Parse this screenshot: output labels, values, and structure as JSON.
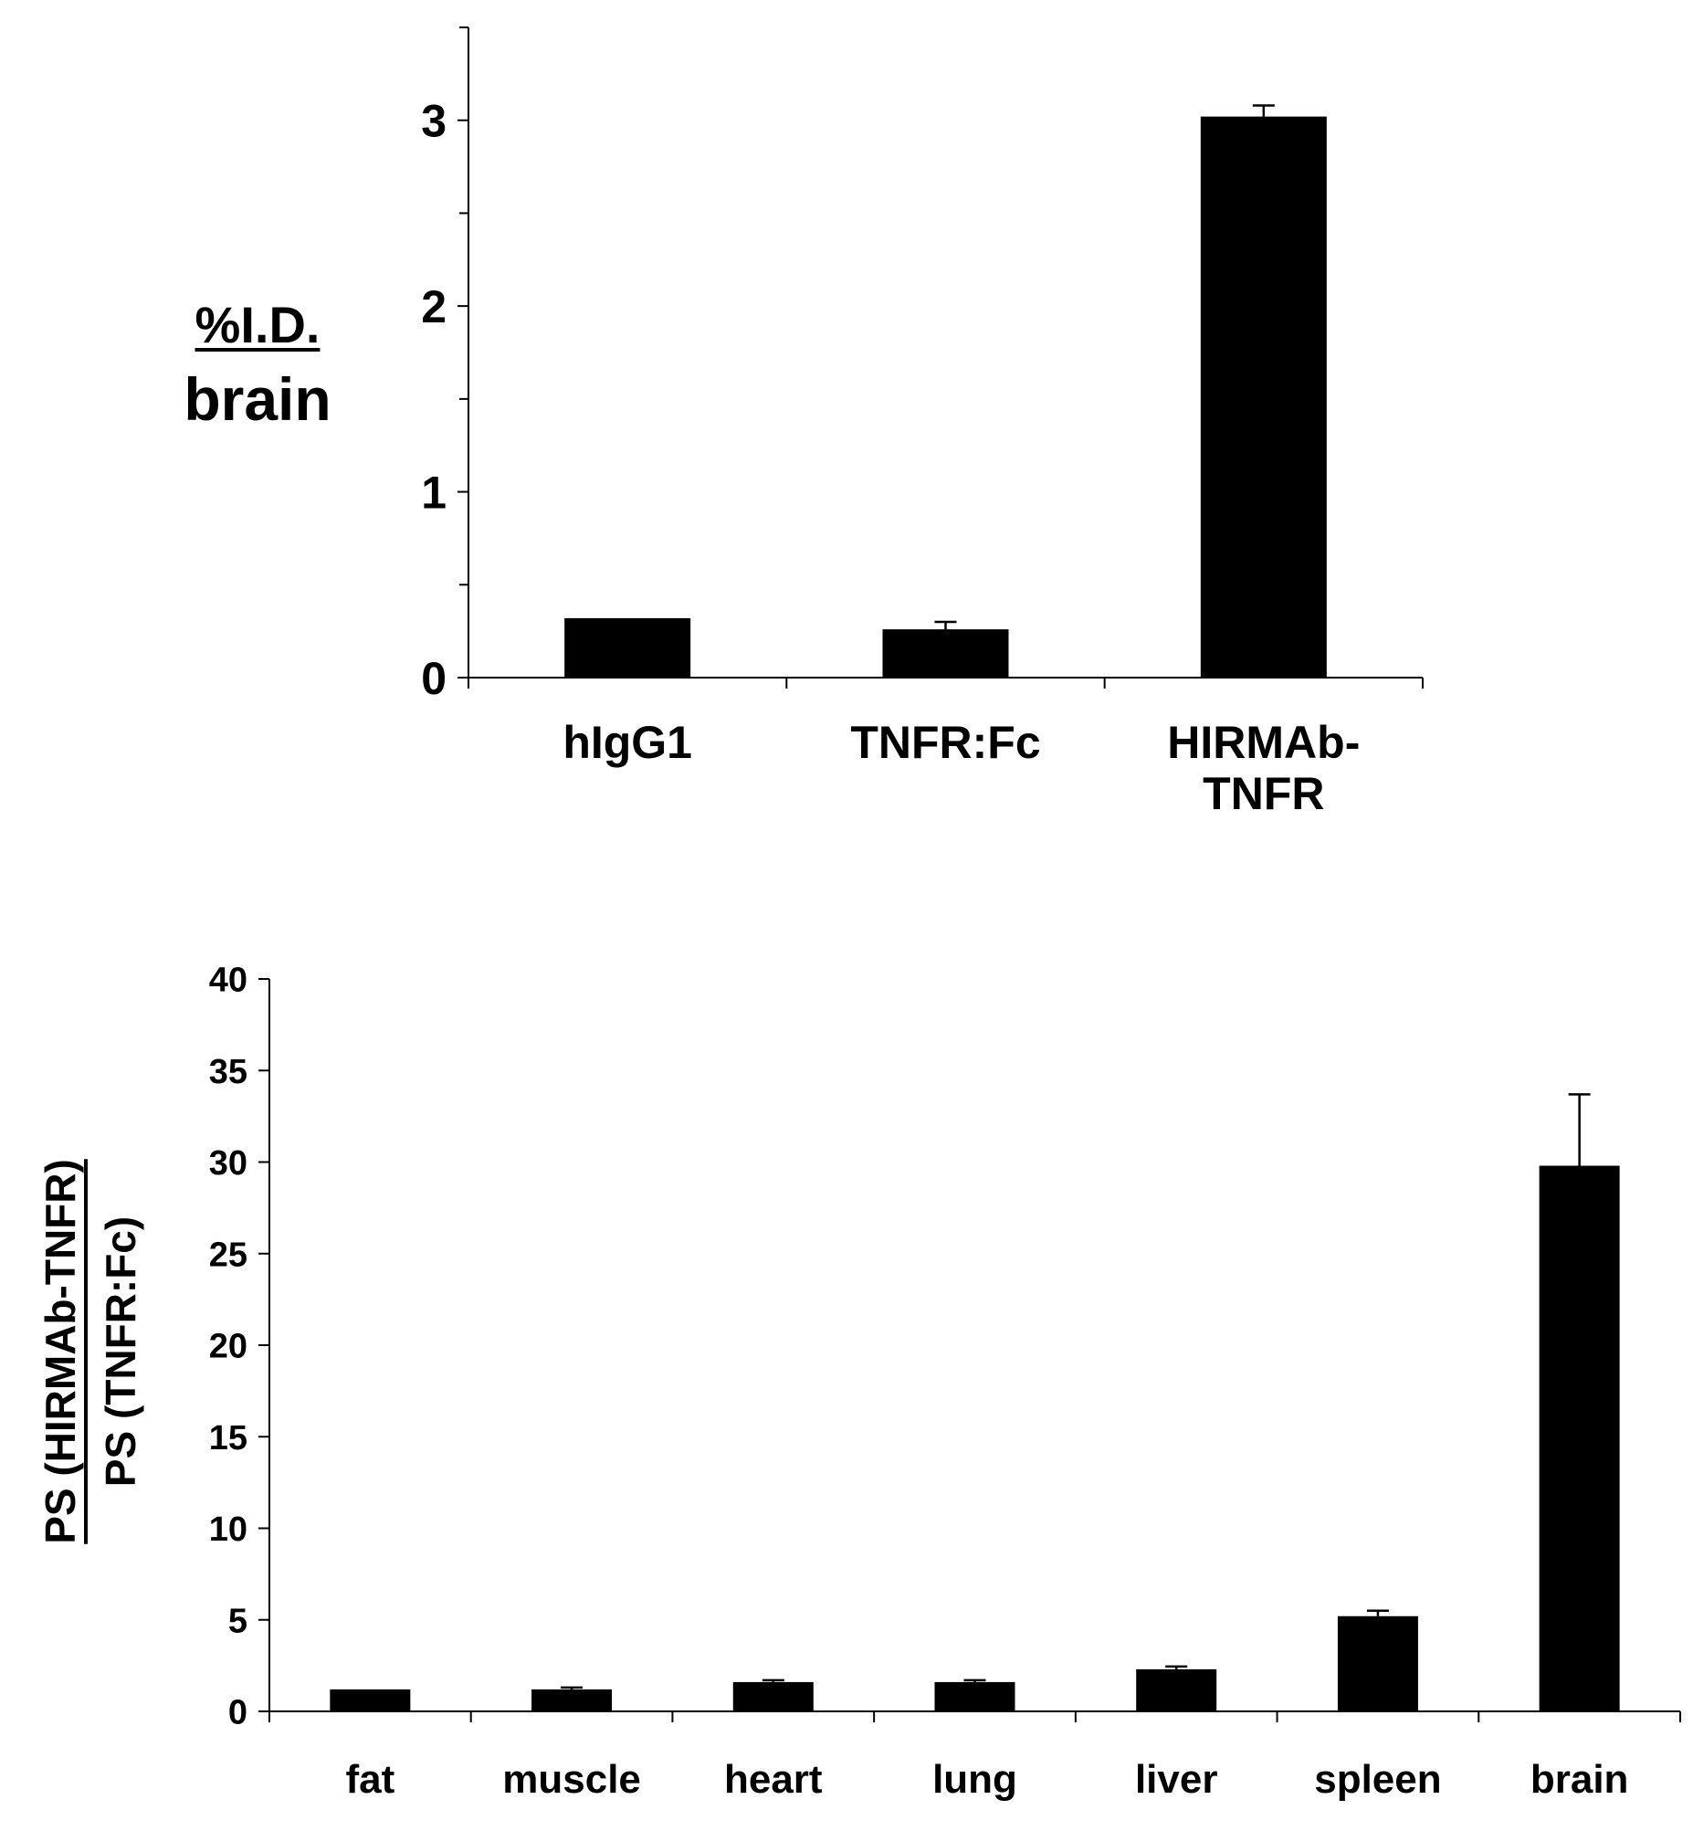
{
  "colors": {
    "bar": "#000000",
    "axis": "#000000",
    "background": "#ffffff"
  },
  "chart_data": [
    {
      "type": "bar",
      "title": "",
      "ylabel_numerator": "%I.D.",
      "ylabel_denominator": "brain",
      "xlabel": "",
      "ylim": [
        0,
        3.5
      ],
      "yticks": [
        0,
        1,
        2,
        3
      ],
      "ytick_labels": [
        "0",
        "1",
        "2",
        "3"
      ],
      "minor_ytick_step": 0.5,
      "categories": [
        [
          "hIgG1"
        ],
        [
          "TNFR:Fc"
        ],
        [
          "HIRMAb-",
          "TNFR"
        ]
      ],
      "values": [
        0.32,
        0.26,
        3.02
      ],
      "errors": [
        0,
        0.04,
        0.06
      ],
      "grid": false,
      "legend": "none"
    },
    {
      "type": "bar",
      "title": "",
      "ylabel_numerator": "PS (HIRMAb-TNFR)",
      "ylabel_denominator": "PS (TNFR:Fc)",
      "xlabel": "",
      "ylim": [
        0,
        40
      ],
      "yticks": [
        0,
        5,
        10,
        15,
        20,
        25,
        30,
        35,
        40
      ],
      "ytick_labels": [
        "0",
        "5",
        "10",
        "15",
        "20",
        "25",
        "30",
        "35",
        "40"
      ],
      "categories": [
        [
          "fat"
        ],
        [
          "muscle"
        ],
        [
          "heart"
        ],
        [
          "lung"
        ],
        [
          "liver"
        ],
        [
          "spleen"
        ],
        [
          "brain"
        ]
      ],
      "values": [
        1.2,
        1.2,
        1.6,
        1.6,
        2.3,
        5.2,
        29.8
      ],
      "errors": [
        0,
        0.1,
        0.1,
        0.1,
        0.15,
        0.3,
        3.9
      ],
      "grid": false,
      "legend": "none"
    }
  ]
}
